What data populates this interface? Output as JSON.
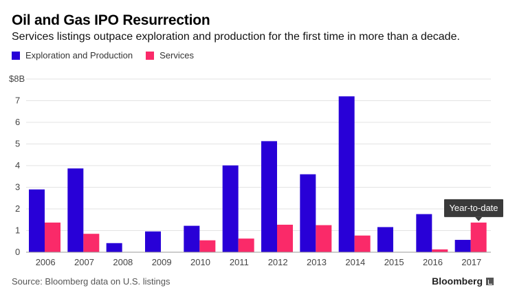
{
  "header": {
    "title": "Oil and Gas IPO Resurrection",
    "subtitle": "Services listings outpace exploration and production for the first time in more than a decade."
  },
  "legend": {
    "items": [
      {
        "label": "Exploration and Production",
        "color": "#2800d7"
      },
      {
        "label": "Services",
        "color": "#fa2a69"
      }
    ]
  },
  "chart_data": {
    "type": "bar",
    "categories": [
      "2006",
      "2007",
      "2008",
      "2009",
      "2010",
      "2011",
      "2012",
      "2013",
      "2014",
      "2015",
      "2016",
      "2017"
    ],
    "series": [
      {
        "name": "Exploration and Production",
        "color": "#2800d7",
        "values": [
          2.9,
          3.87,
          0.42,
          0.96,
          1.22,
          4.01,
          5.13,
          3.6,
          7.2,
          1.16,
          1.76,
          0.57
        ]
      },
      {
        "name": "Services",
        "color": "#fa2a69",
        "values": [
          1.37,
          0.85,
          0,
          0,
          0.55,
          0.63,
          1.27,
          1.25,
          0.77,
          0,
          0.13,
          1.37
        ]
      }
    ],
    "y_tick_labels": [
      "0",
      "1",
      "2",
      "3",
      "4",
      "5",
      "6",
      "7",
      "$8B"
    ],
    "ylim": [
      0,
      8
    ],
    "grid": true,
    "legend_position": "top-left",
    "annotation": {
      "text": "Year-to-date",
      "category": "2017",
      "series": "Services"
    }
  },
  "footer": {
    "source": "Source: Bloomberg data on U.S. listings",
    "brand": "Bloomberg"
  }
}
